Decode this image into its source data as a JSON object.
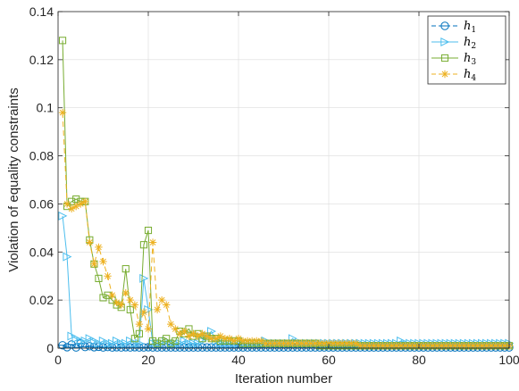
{
  "chart_data": {
    "type": "line",
    "title": "",
    "xlabel": "Iteration number",
    "ylabel": "Violation of equality constraints",
    "xlim": [
      0,
      100
    ],
    "ylim": [
      0,
      0.14
    ],
    "xticks": [
      0,
      20,
      40,
      60,
      80,
      100
    ],
    "yticks": [
      0,
      0.02,
      0.04,
      0.06,
      0.08,
      0.1,
      0.12,
      0.14
    ],
    "ytick_labels": [
      "0",
      "0.02",
      "0.04",
      "0.06",
      "0.08",
      "0.1",
      "0.12",
      "0.14"
    ],
    "xtick_labels": [
      "0",
      "20",
      "40",
      "60",
      "80",
      "100"
    ],
    "grid": true,
    "legend_position": "top-right",
    "series": [
      {
        "name": "h",
        "subscript": "1",
        "color": "#0072BD",
        "marker": "circle-minus",
        "line": "dashed",
        "x": [
          1,
          2,
          3,
          4,
          5,
          6,
          7,
          8,
          9,
          10,
          11,
          12,
          13,
          14,
          15,
          16,
          17,
          18,
          19,
          20,
          21,
          22,
          23,
          24,
          25,
          26,
          27,
          28,
          29,
          30,
          31,
          32,
          33,
          34,
          35,
          36,
          37,
          38,
          39,
          40,
          41,
          42,
          43,
          44,
          45,
          46,
          47,
          48,
          49,
          50,
          51,
          52,
          53,
          54,
          55,
          56,
          57,
          58,
          59,
          60,
          61,
          62,
          63,
          64,
          65,
          66,
          67,
          68,
          69,
          70,
          71,
          72,
          73,
          74,
          75,
          76,
          77,
          78,
          79,
          80,
          81,
          82,
          83,
          84,
          85,
          86,
          87,
          88,
          89,
          90,
          91,
          92,
          93,
          94,
          95,
          96,
          97,
          98,
          99,
          100
        ],
        "y": [
          0.0012,
          0.0004,
          0.0015,
          0.0003,
          0.002,
          0.0005,
          0.0008,
          0.0004,
          0.0006,
          0.0003,
          0.0005,
          0.0003,
          0.0004,
          0.0003,
          0.0004,
          0.0003,
          0.0004,
          0.0003,
          0.0003,
          0.0004,
          0.0003,
          0.0003,
          0.0003,
          0.0003,
          0.0003,
          0.0003,
          0.0003,
          0.0003,
          0.0003,
          0.0003,
          0.0003,
          0.0003,
          0.0003,
          0.0003,
          0.0003,
          0.0003,
          0.0003,
          0.0003,
          0.0003,
          0.0003,
          0.0003,
          0.0003,
          0.0003,
          0.0003,
          0.0003,
          0.0003,
          0.0003,
          0.0003,
          0.0003,
          0.0003,
          0.0003,
          0.0003,
          0.0003,
          0.0003,
          0.0003,
          0.0003,
          0.0003,
          0.0003,
          0.0003,
          0.0003,
          0.0003,
          0.0003,
          0.0003,
          0.0003,
          0.0003,
          0.0003,
          0.0003,
          0.0003,
          0.0003,
          0.0003,
          0.0003,
          0.0003,
          0.0003,
          0.0003,
          0.0003,
          0.0003,
          0.0003,
          0.0003,
          0.0003,
          0.0003,
          0.0003,
          0.0003,
          0.0003,
          0.0003,
          0.0003,
          0.0003,
          0.0003,
          0.0003,
          0.0003,
          0.0003,
          0.0003,
          0.0003,
          0.0003,
          0.0003,
          0.0003,
          0.0003,
          0.0003,
          0.0003,
          0.0003,
          0.0003
        ]
      },
      {
        "name": "h",
        "subscript": "2",
        "color": "#4DBEEE",
        "marker": "triangle-right",
        "line": "solid",
        "x": [
          1,
          2,
          3,
          4,
          5,
          6,
          7,
          8,
          9,
          10,
          11,
          12,
          13,
          14,
          15,
          16,
          17,
          18,
          19,
          20,
          21,
          22,
          23,
          24,
          25,
          26,
          27,
          28,
          29,
          30,
          31,
          32,
          33,
          34,
          35,
          36,
          37,
          38,
          39,
          40,
          41,
          42,
          43,
          44,
          45,
          46,
          47,
          48,
          49,
          50,
          51,
          52,
          53,
          54,
          55,
          56,
          57,
          58,
          59,
          60,
          61,
          62,
          63,
          64,
          65,
          66,
          67,
          68,
          69,
          70,
          71,
          72,
          73,
          74,
          75,
          76,
          77,
          78,
          79,
          80,
          81,
          82,
          83,
          84,
          85,
          86,
          87,
          88,
          89,
          90,
          91,
          92,
          93,
          94,
          95,
          96,
          97,
          98,
          99,
          100
        ],
        "y": [
          0.055,
          0.038,
          0.005,
          0.004,
          0.003,
          0.003,
          0.004,
          0.003,
          0.002,
          0.003,
          0.002,
          0.002,
          0.003,
          0.002,
          0.002,
          0.003,
          0.002,
          0.002,
          0.029,
          0.016,
          0.002,
          0.002,
          0.002,
          0.003,
          0.002,
          0.002,
          0.002,
          0.003,
          0.002,
          0.002,
          0.002,
          0.003,
          0.005,
          0.007,
          0.003,
          0.002,
          0.002,
          0.002,
          0.002,
          0.002,
          0.002,
          0.002,
          0.002,
          0.002,
          0.002,
          0.003,
          0.002,
          0.002,
          0.002,
          0.002,
          0.002,
          0.004,
          0.002,
          0.002,
          0.002,
          0.002,
          0.002,
          0.002,
          0.002,
          0.002,
          0.002,
          0.002,
          0.002,
          0.002,
          0.002,
          0.002,
          0.002,
          0.002,
          0.002,
          0.002,
          0.002,
          0.002,
          0.002,
          0.002,
          0.002,
          0.003,
          0.002,
          0.002,
          0.002,
          0.002,
          0.002,
          0.002,
          0.002,
          0.002,
          0.002,
          0.002,
          0.002,
          0.002,
          0.002,
          0.002,
          0.002,
          0.002,
          0.002,
          0.002,
          0.002,
          0.002,
          0.002,
          0.002,
          0.002,
          0.002
        ]
      },
      {
        "name": "h",
        "subscript": "3",
        "color": "#77AC30",
        "marker": "square",
        "line": "solid",
        "x": [
          1,
          2,
          3,
          4,
          5,
          6,
          7,
          8,
          9,
          10,
          11,
          12,
          13,
          14,
          15,
          16,
          17,
          18,
          19,
          20,
          21,
          22,
          23,
          24,
          25,
          26,
          27,
          28,
          29,
          30,
          31,
          32,
          33,
          34,
          35,
          36,
          37,
          38,
          39,
          40,
          41,
          42,
          43,
          44,
          45,
          46,
          47,
          48,
          49,
          50,
          51,
          52,
          53,
          54,
          55,
          56,
          57,
          58,
          59,
          60,
          61,
          62,
          63,
          64,
          65,
          66,
          67,
          68,
          69,
          70,
          71,
          72,
          73,
          74,
          75,
          76,
          77,
          78,
          79,
          80,
          81,
          82,
          83,
          84,
          85,
          86,
          87,
          88,
          89,
          90,
          91,
          92,
          93,
          94,
          95,
          96,
          97,
          98,
          99,
          100
        ],
        "y": [
          0.128,
          0.059,
          0.061,
          0.062,
          0.061,
          0.061,
          0.045,
          0.035,
          0.029,
          0.021,
          0.022,
          0.02,
          0.018,
          0.017,
          0.033,
          0.016,
          0.004,
          0.006,
          0.043,
          0.049,
          0.003,
          0.002,
          0.003,
          0.004,
          0.002,
          0.003,
          0.007,
          0.006,
          0.008,
          0.005,
          0.006,
          0.004,
          0.005,
          0.004,
          0.004,
          0.003,
          0.003,
          0.003,
          0.003,
          0.003,
          0.002,
          0.002,
          0.002,
          0.002,
          0.002,
          0.002,
          0.002,
          0.002,
          0.002,
          0.002,
          0.002,
          0.002,
          0.002,
          0.002,
          0.002,
          0.002,
          0.002,
          0.001,
          0.001,
          0.001,
          0.001,
          0.001,
          0.001,
          0.001,
          0.001,
          0.001,
          0.001,
          0.001,
          0.001,
          0.001,
          0.001,
          0.001,
          0.001,
          0.001,
          0.001,
          0.001,
          0.001,
          0.001,
          0.001,
          0.001,
          0.001,
          0.001,
          0.001,
          0.001,
          0.001,
          0.001,
          0.001,
          0.001,
          0.001,
          0.001,
          0.001,
          0.001,
          0.001,
          0.001,
          0.001,
          0.001,
          0.001,
          0.001,
          0.001,
          0.001
        ]
      },
      {
        "name": "h",
        "subscript": "4",
        "color": "#EDB120",
        "marker": "asterisk",
        "line": "dashed",
        "x": [
          1,
          2,
          3,
          4,
          5,
          6,
          7,
          8,
          9,
          10,
          11,
          12,
          13,
          14,
          15,
          16,
          17,
          18,
          19,
          20,
          21,
          22,
          23,
          24,
          25,
          26,
          27,
          28,
          29,
          30,
          31,
          32,
          33,
          34,
          35,
          36,
          37,
          38,
          39,
          40,
          41,
          42,
          43,
          44,
          45,
          46,
          47,
          48,
          49,
          50,
          51,
          52,
          53,
          54,
          55,
          56,
          57,
          58,
          59,
          60,
          61,
          62,
          63,
          64,
          65,
          66,
          67,
          68,
          69,
          70,
          71,
          72,
          73,
          74,
          75,
          76,
          77,
          78,
          79,
          80,
          81,
          82,
          83,
          84,
          85,
          86,
          87,
          88,
          89,
          90,
          91,
          92,
          93,
          94,
          95,
          96,
          97,
          98,
          99,
          100
        ],
        "y": [
          0.098,
          0.06,
          0.058,
          0.059,
          0.06,
          0.061,
          0.044,
          0.035,
          0.042,
          0.036,
          0.03,
          0.022,
          0.019,
          0.018,
          0.023,
          0.02,
          0.018,
          0.01,
          0.015,
          0.008,
          0.044,
          0.016,
          0.02,
          0.018,
          0.01,
          0.008,
          0.006,
          0.007,
          0.005,
          0.006,
          0.005,
          0.006,
          0.005,
          0.004,
          0.004,
          0.005,
          0.004,
          0.004,
          0.003,
          0.004,
          0.003,
          0.003,
          0.003,
          0.003,
          0.003,
          0.002,
          0.002,
          0.002,
          0.002,
          0.002,
          0.002,
          0.002,
          0.002,
          0.002,
          0.002,
          0.002,
          0.002,
          0.002,
          0.002,
          0.002,
          0.002,
          0.002,
          0.002,
          0.002,
          0.002,
          0.002,
          0.001,
          0.001,
          0.001,
          0.001,
          0.001,
          0.001,
          0.001,
          0.001,
          0.001,
          0.001,
          0.001,
          0.001,
          0.001,
          0.001,
          0.001,
          0.001,
          0.001,
          0.001,
          0.001,
          0.001,
          0.001,
          0.001,
          0.001,
          0.001,
          0.001,
          0.001,
          0.001,
          0.001,
          0.001,
          0.001,
          0.001,
          0.001,
          0.001,
          0.001
        ]
      }
    ]
  }
}
